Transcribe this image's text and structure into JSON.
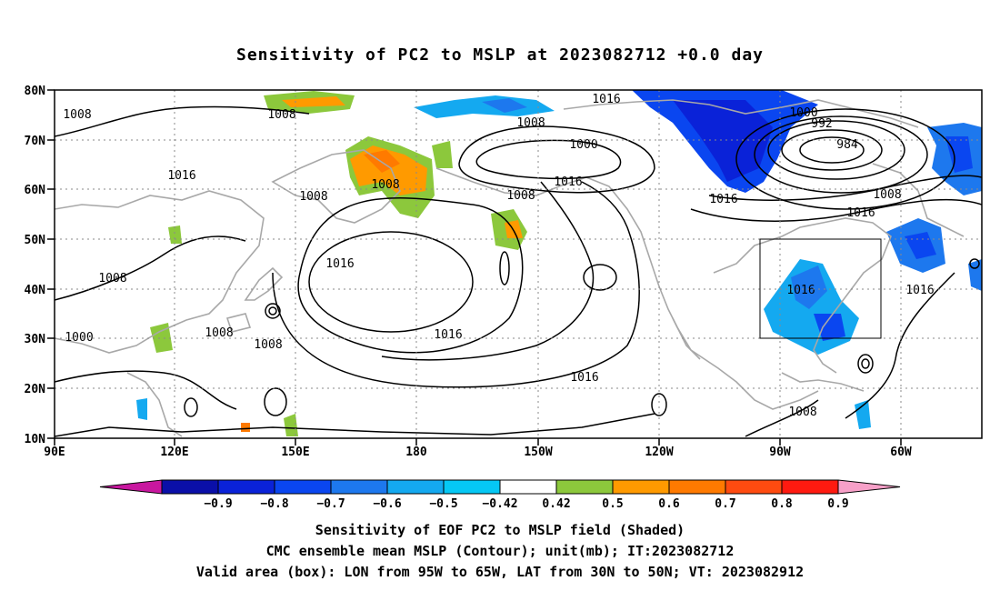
{
  "title": "Sensitivity of PC2 to MSLP at 2023082712 +0.0 day",
  "lat_labels": [
    "80N",
    "70N",
    "60N",
    "50N",
    "40N",
    "30N",
    "20N",
    "10N"
  ],
  "lon_labels": [
    "90E",
    "120E",
    "150E",
    "180",
    "150W",
    "120W",
    "90W",
    "60W"
  ],
  "colorbar": {
    "ticks": [
      "-0.9",
      "-0.8",
      "-0.7",
      "-0.6",
      "-0.5",
      "-0.42",
      "0.42",
      "0.5",
      "0.6",
      "0.7",
      "0.8",
      "0.9"
    ],
    "colors": [
      "#c8179f",
      "#0a0fa8",
      "#0a22d8",
      "#0a46f0",
      "#1d78ee",
      "#14a9f0",
      "#05c8f5",
      "#ffffff",
      "#8cc83c",
      "#ff9a00",
      "#ff7a00",
      "#ff4b10",
      "#ff1a10",
      "#f7a0c8"
    ]
  },
  "contour_labels": [
    "1008",
    "1008",
    "1016",
    "1008",
    "1008",
    "1016",
    "1000",
    "1008",
    "1008",
    "1008",
    "1016",
    "1008",
    "1016",
    "1016",
    "1000",
    "1008",
    "1016",
    "1016",
    "1000",
    "992",
    "984",
    "1008",
    "1016",
    "1016",
    "1016",
    "1008"
  ],
  "valid_area": {
    "lon_west": "95W",
    "lon_east": "65W",
    "lat_south": "30N",
    "lat_north": "50N"
  },
  "captions": [
    "Sensitivity of EOF PC2 to MSLP field (Shaded)",
    "CMC ensemble mean MSLP (Contour); unit(mb); IT:2023082712",
    "Valid area (box): LON from 95W to 65W, LAT from 30N to 50N; VT: 2023082912"
  ]
}
